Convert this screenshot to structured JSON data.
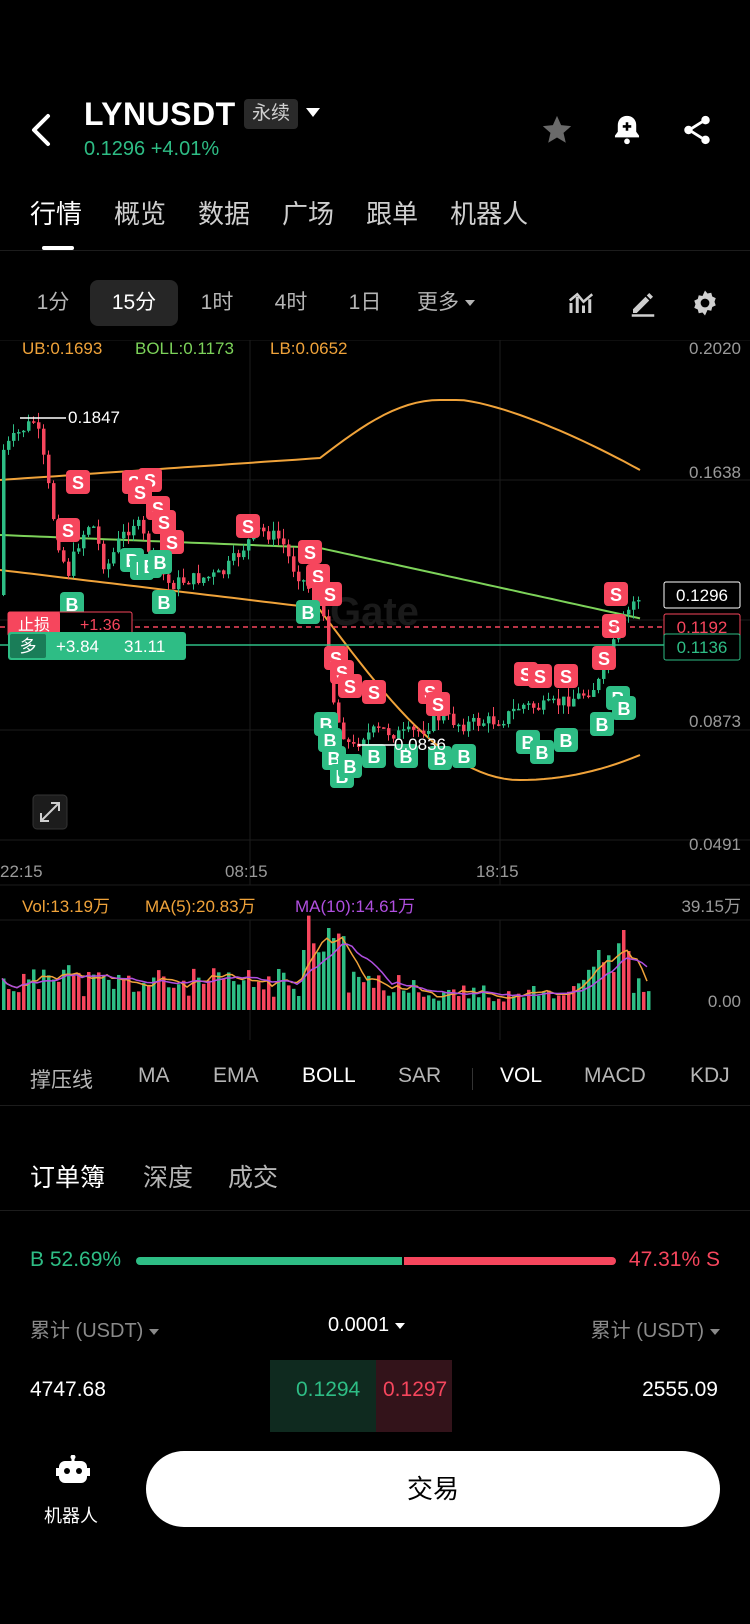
{
  "header": {
    "symbol": "LYNUSDT",
    "contract_type": "永续",
    "last_price": "0.1296",
    "change": "+4.01%"
  },
  "tabs": [
    "行情",
    "概览",
    "数据",
    "广场",
    "跟单",
    "机器人"
  ],
  "timeframes": [
    "1分",
    "15分",
    "1时",
    "4时",
    "1日",
    "更多"
  ],
  "selected_timeframe": "15分",
  "chart": {
    "boll_ub": "UB:0.1693",
    "boll_mid": "BOLL:0.1173",
    "boll_lb": "LB:0.0652",
    "y_ticks": [
      "0.2020",
      "0.1638",
      "0.0873",
      "0.0491"
    ],
    "x_ticks": [
      "22:15",
      "08:15",
      "18:15"
    ],
    "high_label": "0.1847",
    "low_label": "0.0836",
    "current_price_tag": "0.1296",
    "red_line_tag": "0.1192",
    "green_line_tag": "0.1136",
    "stop_label": "止损",
    "stop_value": "+1.36",
    "position_side": "多",
    "position_pnl": "+3.84",
    "position_size": "31.11",
    "watermark": "Gate"
  },
  "volume": {
    "vol": "Vol:13.19万",
    "ma5": "MA(5):20.83万",
    "ma10": "MA(10):14.61万",
    "top_tick": "39.15万",
    "bottom_tick": "0.00"
  },
  "indicators": [
    "撑压线",
    "MA",
    "EMA",
    "BOLL",
    "SAR",
    "VOL",
    "MACD",
    "KDJ"
  ],
  "active_indicators": [
    "BOLL",
    "VOL"
  ],
  "orderbook": {
    "tabs": [
      "订单簿",
      "深度",
      "成交"
    ],
    "buy_pct": "B 52.69%",
    "sell_pct": "47.31% S",
    "buy_ratio": 0.5269,
    "left_header": "累计 (USDT)",
    "precision": "0.0001",
    "right_header": "累计 (USDT)",
    "bid_total": "4747.68",
    "bid_price": "0.1294",
    "ask_price": "0.1297",
    "ask_total": "2555.09"
  },
  "bottom": {
    "robot_label": "机器人",
    "trade_button": "交易"
  },
  "colors": {
    "up": "#2ebd85",
    "down": "#f6465d",
    "boll_ub": "#f0a33a",
    "boll_mid": "#7dd35a",
    "ma10": "#b04fe0"
  }
}
